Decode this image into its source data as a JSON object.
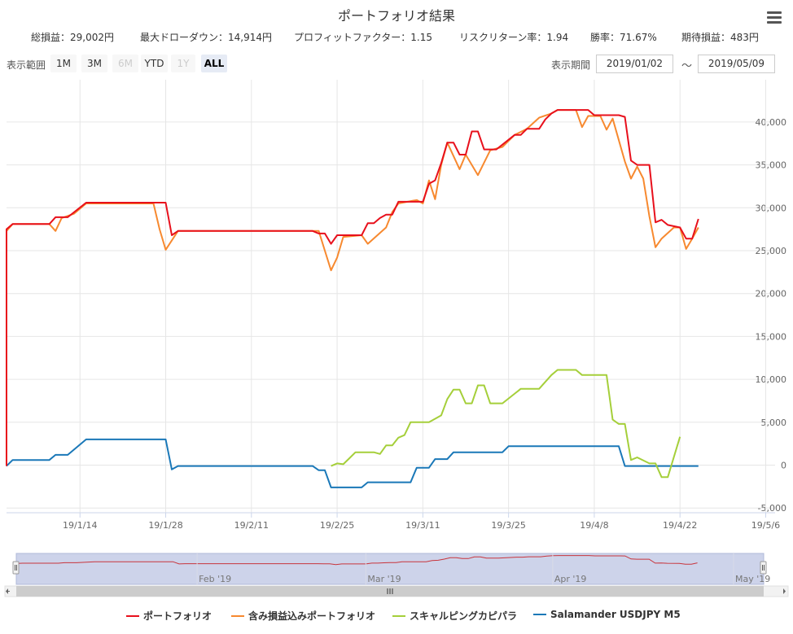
{
  "title": "ポートフォリオ結果",
  "stats": [
    {
      "label": "総損益",
      "value": "29,002円"
    },
    {
      "label": "最大ドローダウン",
      "value": "14,914円"
    },
    {
      "label": "プロフィットファクター",
      "value": "1.15"
    },
    {
      "label": "リスクリターン率",
      "value": "1.94"
    },
    {
      "label": "勝率",
      "value": "71.67%"
    },
    {
      "label": "期待損益",
      "value": "483円"
    }
  ],
  "stat_separator": "：",
  "range_selector": {
    "label": "表示範囲",
    "buttons": [
      {
        "label": "1M",
        "state": "enabled"
      },
      {
        "label": "3M",
        "state": "enabled"
      },
      {
        "label": "6M",
        "state": "disabled"
      },
      {
        "label": "YTD",
        "state": "enabled"
      },
      {
        "label": "1Y",
        "state": "disabled"
      },
      {
        "label": "ALL",
        "state": "active"
      }
    ]
  },
  "period": {
    "label": "表示期間",
    "from": "2019/01/02",
    "to": "2019/05/09",
    "separator": "～"
  },
  "menu_icon": "hamburger-menu-icon",
  "colors": {
    "portfolio": "#e8101c",
    "portfolio_with_unrealized": "#f7892f",
    "scalping": "#a5cf3a",
    "salamander": "#1a78b8",
    "navigator_fill": "#cdd3ea",
    "navigator_line": "#c8343c"
  },
  "chart_data": {
    "type": "line",
    "x_ticks": [
      "19/1/14",
      "19/1/28",
      "19/2/11",
      "19/2/25",
      "19/3/11",
      "19/3/25",
      "19/4/8",
      "19/4/22",
      "19/5/6"
    ],
    "y_ticks": [
      "-5,000",
      "0",
      "5,000",
      "10,000",
      "15,000",
      "20,000",
      "25,000",
      "30,000",
      "35,000",
      "40,000"
    ],
    "ylim": [
      -5500,
      45000
    ],
    "xlim": [
      "2019/01/02",
      "2019/05/09"
    ],
    "grid": true,
    "legend_position": "bottom",
    "series": [
      {
        "name": "ポートフォリオ",
        "key": "portfolio",
        "points": [
          [
            "2019/01/02",
            -100
          ],
          [
            "2019/01/02",
            27500
          ],
          [
            "2019/01/03",
            28100
          ],
          [
            "2019/01/09",
            28100
          ],
          [
            "2019/01/10",
            28900
          ],
          [
            "2019/01/12",
            28900
          ],
          [
            "2019/01/15",
            30600
          ],
          [
            "2019/01/28",
            30600
          ],
          [
            "2019/01/29",
            26800
          ],
          [
            "2019/01/30",
            27300
          ],
          [
            "2019/02/21",
            27300
          ],
          [
            "2019/02/22",
            27000
          ],
          [
            "2019/02/23",
            27000
          ],
          [
            "2019/02/24",
            25800
          ],
          [
            "2019/02/25",
            26800
          ],
          [
            "2019/03/01",
            26800
          ],
          [
            "2019/03/02",
            28200
          ],
          [
            "2019/03/03",
            28200
          ],
          [
            "2019/03/04",
            28800
          ],
          [
            "2019/03/05",
            29200
          ],
          [
            "2019/03/06",
            29200
          ],
          [
            "2019/03/07",
            30700
          ],
          [
            "2019/03/11",
            30700
          ],
          [
            "2019/03/12",
            32800
          ],
          [
            "2019/03/13",
            33200
          ],
          [
            "2019/03/14",
            35200
          ],
          [
            "2019/03/15",
            37600
          ],
          [
            "2019/03/16",
            37600
          ],
          [
            "2019/03/17",
            36200
          ],
          [
            "2019/03/18",
            36200
          ],
          [
            "2019/03/19",
            38900
          ],
          [
            "2019/03/20",
            38900
          ],
          [
            "2019/03/21",
            36800
          ],
          [
            "2019/03/23",
            36800
          ],
          [
            "2019/03/26",
            38500
          ],
          [
            "2019/03/27",
            38500
          ],
          [
            "2019/03/28",
            39200
          ],
          [
            "2019/03/30",
            39200
          ],
          [
            "2019/03/31",
            40300
          ],
          [
            "2019/04/01",
            41000
          ],
          [
            "2019/04/02",
            41400
          ],
          [
            "2019/04/07",
            41400
          ],
          [
            "2019/04/08",
            40800
          ],
          [
            "2019/04/12",
            40800
          ],
          [
            "2019/04/13",
            40600
          ],
          [
            "2019/04/14",
            35500
          ],
          [
            "2019/04/15",
            35000
          ],
          [
            "2019/04/17",
            35000
          ],
          [
            "2019/04/18",
            28300
          ],
          [
            "2019/04/19",
            28600
          ],
          [
            "2019/04/20",
            28000
          ],
          [
            "2019/04/22",
            27700
          ],
          [
            "2019/04/23",
            26400
          ],
          [
            "2019/04/24",
            26400
          ],
          [
            "2019/04/25",
            28700
          ]
        ]
      },
      {
        "name": "含み損益込みポートフォリオ",
        "key": "portfolio_with_unrealized",
        "points": [
          [
            "2019/01/02",
            27300
          ],
          [
            "2019/01/03",
            28100
          ],
          [
            "2019/01/09",
            28100
          ],
          [
            "2019/01/10",
            27300
          ],
          [
            "2019/01/11",
            28800
          ],
          [
            "2019/01/13",
            29300
          ],
          [
            "2019/01/15",
            30500
          ],
          [
            "2019/01/26",
            30500
          ],
          [
            "2019/01/27",
            27500
          ],
          [
            "2019/01/28",
            25100
          ],
          [
            "2019/01/30",
            27300
          ],
          [
            "2019/02/22",
            27300
          ],
          [
            "2019/02/23",
            25000
          ],
          [
            "2019/02/24",
            22700
          ],
          [
            "2019/02/25",
            24200
          ],
          [
            "2019/02/26",
            26600
          ],
          [
            "2019/03/01",
            26800
          ],
          [
            "2019/03/02",
            25800
          ],
          [
            "2019/03/05",
            27700
          ],
          [
            "2019/03/06",
            29500
          ],
          [
            "2019/03/07",
            30500
          ],
          [
            "2019/03/10",
            30900
          ],
          [
            "2019/03/11",
            30500
          ],
          [
            "2019/03/12",
            33200
          ],
          [
            "2019/03/13",
            31000
          ],
          [
            "2019/03/14",
            35000
          ],
          [
            "2019/03/15",
            37600
          ],
          [
            "2019/03/17",
            34500
          ],
          [
            "2019/03/18",
            36200
          ],
          [
            "2019/03/19",
            35000
          ],
          [
            "2019/03/20",
            33800
          ],
          [
            "2019/03/22",
            36700
          ],
          [
            "2019/03/24",
            37100
          ],
          [
            "2019/03/26",
            38500
          ],
          [
            "2019/03/28",
            39200
          ],
          [
            "2019/03/30",
            40500
          ],
          [
            "2019/04/01",
            41000
          ],
          [
            "2019/04/02",
            41400
          ],
          [
            "2019/04/05",
            41400
          ],
          [
            "2019/04/06",
            39400
          ],
          [
            "2019/04/07",
            40700
          ],
          [
            "2019/04/09",
            40700
          ],
          [
            "2019/04/10",
            39100
          ],
          [
            "2019/04/11",
            40400
          ],
          [
            "2019/04/13",
            35400
          ],
          [
            "2019/04/14",
            33400
          ],
          [
            "2019/04/15",
            34800
          ],
          [
            "2019/04/16",
            33400
          ],
          [
            "2019/04/17",
            29000
          ],
          [
            "2019/04/18",
            25400
          ],
          [
            "2019/04/19",
            26400
          ],
          [
            "2019/04/21",
            27700
          ],
          [
            "2019/04/22",
            27700
          ],
          [
            "2019/04/23",
            25200
          ],
          [
            "2019/04/24",
            26400
          ],
          [
            "2019/04/25",
            27700
          ]
        ]
      },
      {
        "name": "スキャルピングカピパラ",
        "key": "scalping",
        "points": [
          [
            "2019/02/24",
            -100
          ],
          [
            "2019/02/25",
            200
          ],
          [
            "2019/02/26",
            100
          ],
          [
            "2019/02/27",
            800
          ],
          [
            "2019/02/28",
            1500
          ],
          [
            "2019/03/03",
            1500
          ],
          [
            "2019/03/04",
            1300
          ],
          [
            "2019/03/05",
            2300
          ],
          [
            "2019/03/06",
            2300
          ],
          [
            "2019/03/07",
            3200
          ],
          [
            "2019/03/08",
            3500
          ],
          [
            "2019/03/09",
            5000
          ],
          [
            "2019/03/12",
            5000
          ],
          [
            "2019/03/14",
            5800
          ],
          [
            "2019/03/15",
            7700
          ],
          [
            "2019/03/16",
            8800
          ],
          [
            "2019/03/17",
            8800
          ],
          [
            "2019/03/18",
            7200
          ],
          [
            "2019/03/19",
            7200
          ],
          [
            "2019/03/20",
            9300
          ],
          [
            "2019/03/21",
            9300
          ],
          [
            "2019/03/22",
            7200
          ],
          [
            "2019/03/24",
            7200
          ],
          [
            "2019/03/27",
            8900
          ],
          [
            "2019/03/30",
            8900
          ],
          [
            "2019/04/01",
            10500
          ],
          [
            "2019/04/02",
            11100
          ],
          [
            "2019/04/05",
            11100
          ],
          [
            "2019/04/06",
            10500
          ],
          [
            "2019/04/10",
            10500
          ],
          [
            "2019/04/11",
            5300
          ],
          [
            "2019/04/12",
            4800
          ],
          [
            "2019/04/13",
            4800
          ],
          [
            "2019/04/14",
            600
          ],
          [
            "2019/04/15",
            900
          ],
          [
            "2019/04/17",
            200
          ],
          [
            "2019/04/18",
            200
          ],
          [
            "2019/04/19",
            -1400
          ],
          [
            "2019/04/20",
            -1400
          ],
          [
            "2019/04/22",
            3300
          ]
        ]
      },
      {
        "name": "Salamander USDJPY M5",
        "key": "salamander",
        "points": [
          [
            "2019/01/02",
            -100
          ],
          [
            "2019/01/03",
            600
          ],
          [
            "2019/01/09",
            600
          ],
          [
            "2019/01/10",
            1200
          ],
          [
            "2019/01/12",
            1200
          ],
          [
            "2019/01/15",
            3000
          ],
          [
            "2019/01/28",
            3000
          ],
          [
            "2019/01/29",
            -500
          ],
          [
            "2019/01/30",
            -100
          ],
          [
            "2019/02/21",
            -100
          ],
          [
            "2019/02/22",
            -600
          ],
          [
            "2019/02/23",
            -600
          ],
          [
            "2019/02/24",
            -2600
          ],
          [
            "2019/03/01",
            -2600
          ],
          [
            "2019/03/02",
            -2000
          ],
          [
            "2019/03/09",
            -2000
          ],
          [
            "2019/03/10",
            -300
          ],
          [
            "2019/03/12",
            -300
          ],
          [
            "2019/03/13",
            700
          ],
          [
            "2019/03/15",
            700
          ],
          [
            "2019/03/16",
            1500
          ],
          [
            "2019/03/24",
            1500
          ],
          [
            "2019/03/25",
            2200
          ],
          [
            "2019/04/12",
            2200
          ],
          [
            "2019/04/13",
            -100
          ],
          [
            "2019/04/25",
            -100
          ]
        ]
      }
    ],
    "navigator": {
      "labels": [
        "Feb '19",
        "Mar '19",
        "Apr '19",
        "May '19"
      ]
    }
  }
}
